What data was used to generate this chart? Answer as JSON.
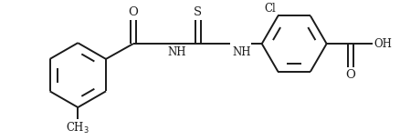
{
  "bg_color": "#ffffff",
  "line_color": "#1a1a1a",
  "line_width": 1.4,
  "font_size": 8.5,
  "figsize": [
    4.38,
    1.54
  ],
  "dpi": 100,
  "xlim": [
    0,
    438
  ],
  "ylim": [
    0,
    154
  ]
}
